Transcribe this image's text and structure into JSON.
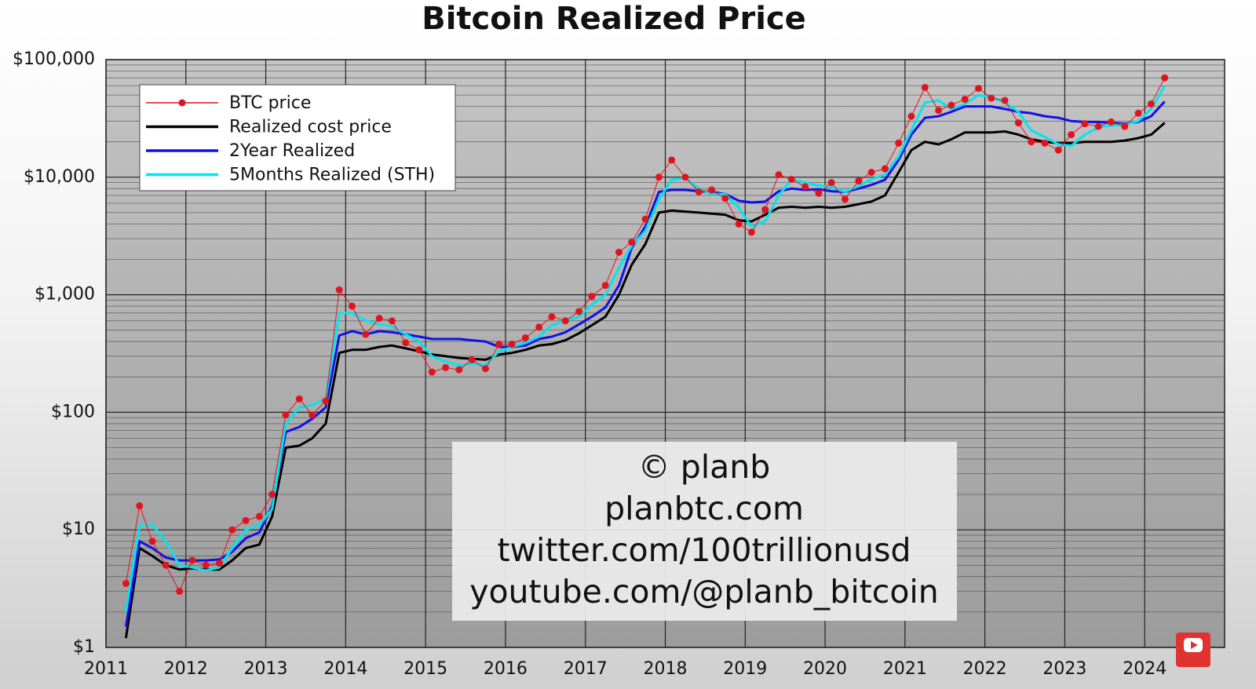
{
  "chart_data": {
    "type": "line",
    "title": "Bitcoin Realized Price",
    "log_y": true,
    "grid": true,
    "minor_grid": true,
    "legend": "upper left",
    "xlim": [
      2011,
      2025
    ],
    "xticks": [
      2011,
      2012,
      2013,
      2014,
      2015,
      2016,
      2017,
      2018,
      2019,
      2020,
      2021,
      2022,
      2023,
      2024
    ],
    "ylim": [
      1,
      100000
    ],
    "yticks": [
      {
        "value": 1,
        "label": "$1"
      },
      {
        "value": 10,
        "label": "$10"
      },
      {
        "value": 100,
        "label": "$100"
      },
      {
        "value": 1000,
        "label": "$1,000"
      },
      {
        "value": 10000,
        "label": "$10,000"
      },
      {
        "value": 100000,
        "label": "$100,000"
      }
    ],
    "x": [
      2011.25,
      2011.42,
      2011.58,
      2011.75,
      2011.92,
      2012.08,
      2012.25,
      2012.42,
      2012.58,
      2012.75,
      2012.92,
      2013.08,
      2013.25,
      2013.42,
      2013.58,
      2013.75,
      2013.92,
      2014.08,
      2014.25,
      2014.42,
      2014.58,
      2014.75,
      2014.92,
      2015.08,
      2015.25,
      2015.42,
      2015.58,
      2015.75,
      2015.92,
      2016.08,
      2016.25,
      2016.42,
      2016.58,
      2016.75,
      2016.92,
      2017.08,
      2017.25,
      2017.42,
      2017.58,
      2017.75,
      2017.92,
      2018.08,
      2018.25,
      2018.42,
      2018.58,
      2018.75,
      2018.92,
      2019.08,
      2019.25,
      2019.42,
      2019.58,
      2019.75,
      2019.92,
      2020.08,
      2020.25,
      2020.42,
      2020.58,
      2020.75,
      2020.92,
      2021.08,
      2021.25,
      2021.42,
      2021.58,
      2021.75,
      2021.92,
      2022.08,
      2022.25,
      2022.42,
      2022.58,
      2022.75,
      2022.92,
      2023.08,
      2023.25,
      2023.42,
      2023.58,
      2023.75,
      2023.92,
      2024.08,
      2024.25
    ],
    "series": [
      {
        "name": "BTC price",
        "color": "#e0141e",
        "line_width": 1,
        "markers": true,
        "values": [
          3.5,
          16,
          8,
          5,
          3,
          5.5,
          5,
          5.2,
          10,
          12,
          13,
          20,
          95,
          130,
          95,
          125,
          1100,
          800,
          460,
          630,
          600,
          390,
          340,
          220,
          240,
          230,
          280,
          235,
          380,
          380,
          430,
          530,
          650,
          600,
          720,
          970,
          1200,
          2300,
          2800,
          4400,
          10000,
          14000,
          10000,
          7500,
          7800,
          6600,
          4000,
          3400,
          5300,
          10500,
          9600,
          8300,
          7300,
          9000,
          6500,
          9300,
          11000,
          11800,
          19500,
          33000,
          58000,
          37000,
          41000,
          46000,
          57000,
          47000,
          45000,
          29000,
          20000,
          19500,
          17000,
          23000,
          28500,
          27000,
          29500,
          27000,
          35000,
          42000,
          70000
        ]
      },
      {
        "name": "Realized cost price",
        "color": "#000000",
        "line_width": 3,
        "values": [
          1.2,
          7,
          6,
          5,
          4.6,
          4.7,
          4.6,
          4.6,
          5.5,
          7,
          7.5,
          13,
          50,
          52,
          60,
          80,
          320,
          340,
          340,
          360,
          370,
          350,
          330,
          310,
          300,
          290,
          285,
          280,
          310,
          320,
          340,
          370,
          380,
          410,
          470,
          550,
          650,
          1000,
          1800,
          2700,
          5000,
          5200,
          5100,
          5000,
          4900,
          4800,
          4300,
          4200,
          4800,
          5500,
          5600,
          5500,
          5600,
          5500,
          5600,
          5900,
          6200,
          7000,
          11000,
          17000,
          20000,
          19000,
          21000,
          24000,
          24000,
          24000,
          24500,
          23000,
          21000,
          20000,
          19500,
          19500,
          20000,
          20000,
          20000,
          20500,
          21500,
          23000,
          29000
        ]
      },
      {
        "name": "2Year Realized",
        "color": "#1010e8",
        "line_width": 3,
        "values": [
          1.5,
          8,
          7,
          5.8,
          5.5,
          5.5,
          5.5,
          5.6,
          6.5,
          8.5,
          9.5,
          16,
          68,
          75,
          88,
          110,
          450,
          490,
          460,
          490,
          480,
          460,
          440,
          420,
          420,
          420,
          410,
          400,
          360,
          360,
          370,
          420,
          440,
          480,
          560,
          650,
          780,
          1200,
          2500,
          3800,
          7500,
          7800,
          7800,
          7600,
          7500,
          7200,
          6300,
          6100,
          6200,
          7600,
          8000,
          7800,
          7900,
          7600,
          7500,
          8000,
          8600,
          9500,
          14000,
          23000,
          32000,
          33000,
          36000,
          40000,
          40000,
          40000,
          38000,
          36000,
          35000,
          33000,
          32000,
          30000,
          29500,
          29500,
          29000,
          28500,
          29500,
          33000,
          44000
        ]
      },
      {
        "name": "5Months Realized (STH)",
        "color": "#00e5ee",
        "line_width": 3,
        "values": [
          2,
          11,
          11,
          8,
          5,
          4.8,
          4.5,
          4.8,
          7,
          10,
          11,
          15,
          80,
          110,
          115,
          130,
          700,
          700,
          600,
          560,
          540,
          460,
          400,
          300,
          270,
          250,
          260,
          250,
          330,
          360,
          390,
          440,
          550,
          600,
          650,
          820,
          1000,
          1700,
          2600,
          3500,
          6500,
          9500,
          9800,
          8000,
          7200,
          7200,
          5500,
          3800,
          4200,
          7000,
          9500,
          9000,
          8500,
          8200,
          7500,
          8400,
          9600,
          10500,
          15000,
          25000,
          43000,
          45000,
          38000,
          42000,
          50000,
          48000,
          43000,
          36000,
          25000,
          22000,
          19000,
          18500,
          23000,
          26500,
          27500,
          28000,
          30000,
          38000,
          60000
        ]
      }
    ],
    "annotations": [
      "© planb",
      "planbtc.com",
      "twitter.com/100trillionusd",
      "youtube.com/@planb_bitcoin"
    ]
  }
}
